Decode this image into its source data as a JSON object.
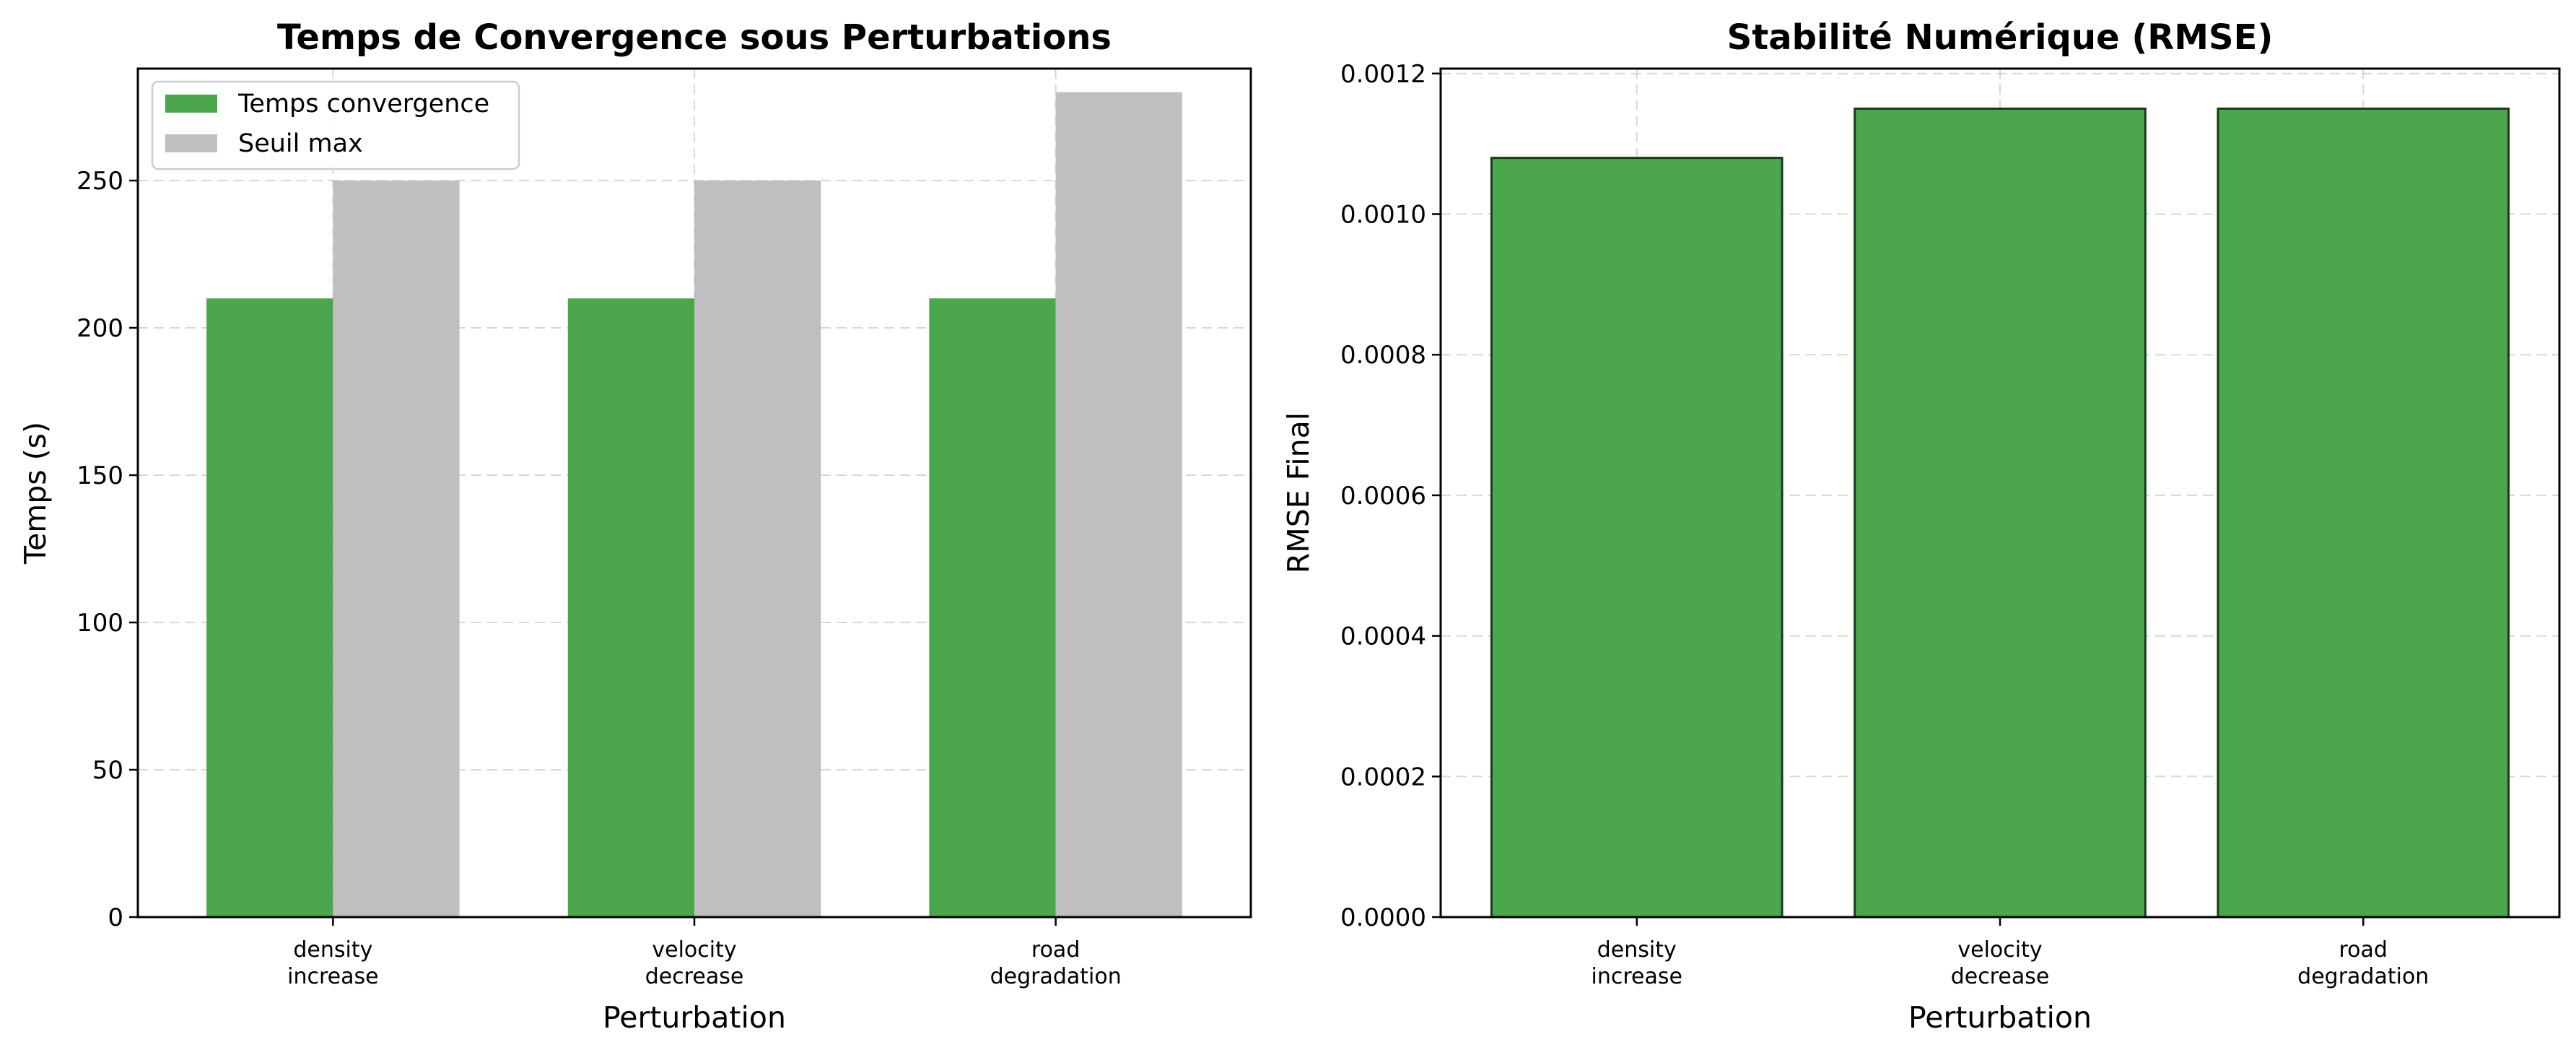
{
  "chart_data": [
    {
      "type": "bar",
      "title": "Temps de Convergence sous Perturbations",
      "xlabel": "Perturbation",
      "ylabel": "Temps (s)",
      "categories": [
        [
          "density",
          "increase"
        ],
        [
          "velocity",
          "decrease"
        ],
        [
          "road",
          "degradation"
        ]
      ],
      "ylim": [
        0,
        288
      ],
      "yticks": [
        0,
        50,
        100,
        150,
        200,
        250
      ],
      "grid": true,
      "legend": "top-left",
      "series": [
        {
          "name": "Temps convergence",
          "values": [
            210,
            210,
            210
          ],
          "color": "#4ca64c"
        },
        {
          "name": "Seuil max",
          "values": [
            250,
            250,
            280
          ],
          "color": "#bfbfbf"
        }
      ]
    },
    {
      "type": "bar",
      "title": "Stabilité Numérique (RMSE)",
      "xlabel": "Perturbation",
      "ylabel": "RMSE Final",
      "categories": [
        [
          "density",
          "increase"
        ],
        [
          "velocity",
          "decrease"
        ],
        [
          "road",
          "degradation"
        ]
      ],
      "ylim": [
        0,
        0.001207
      ],
      "yticks": [
        "0.0000",
        "0.0002",
        "0.0004",
        "0.0006",
        "0.0008",
        "0.0010",
        "0.0012"
      ],
      "grid": true,
      "series": [
        {
          "values": [
            0.00108,
            0.00115,
            0.00115
          ],
          "color": "#4ca64c",
          "edge_color": "#1a3a1a"
        }
      ]
    }
  ]
}
